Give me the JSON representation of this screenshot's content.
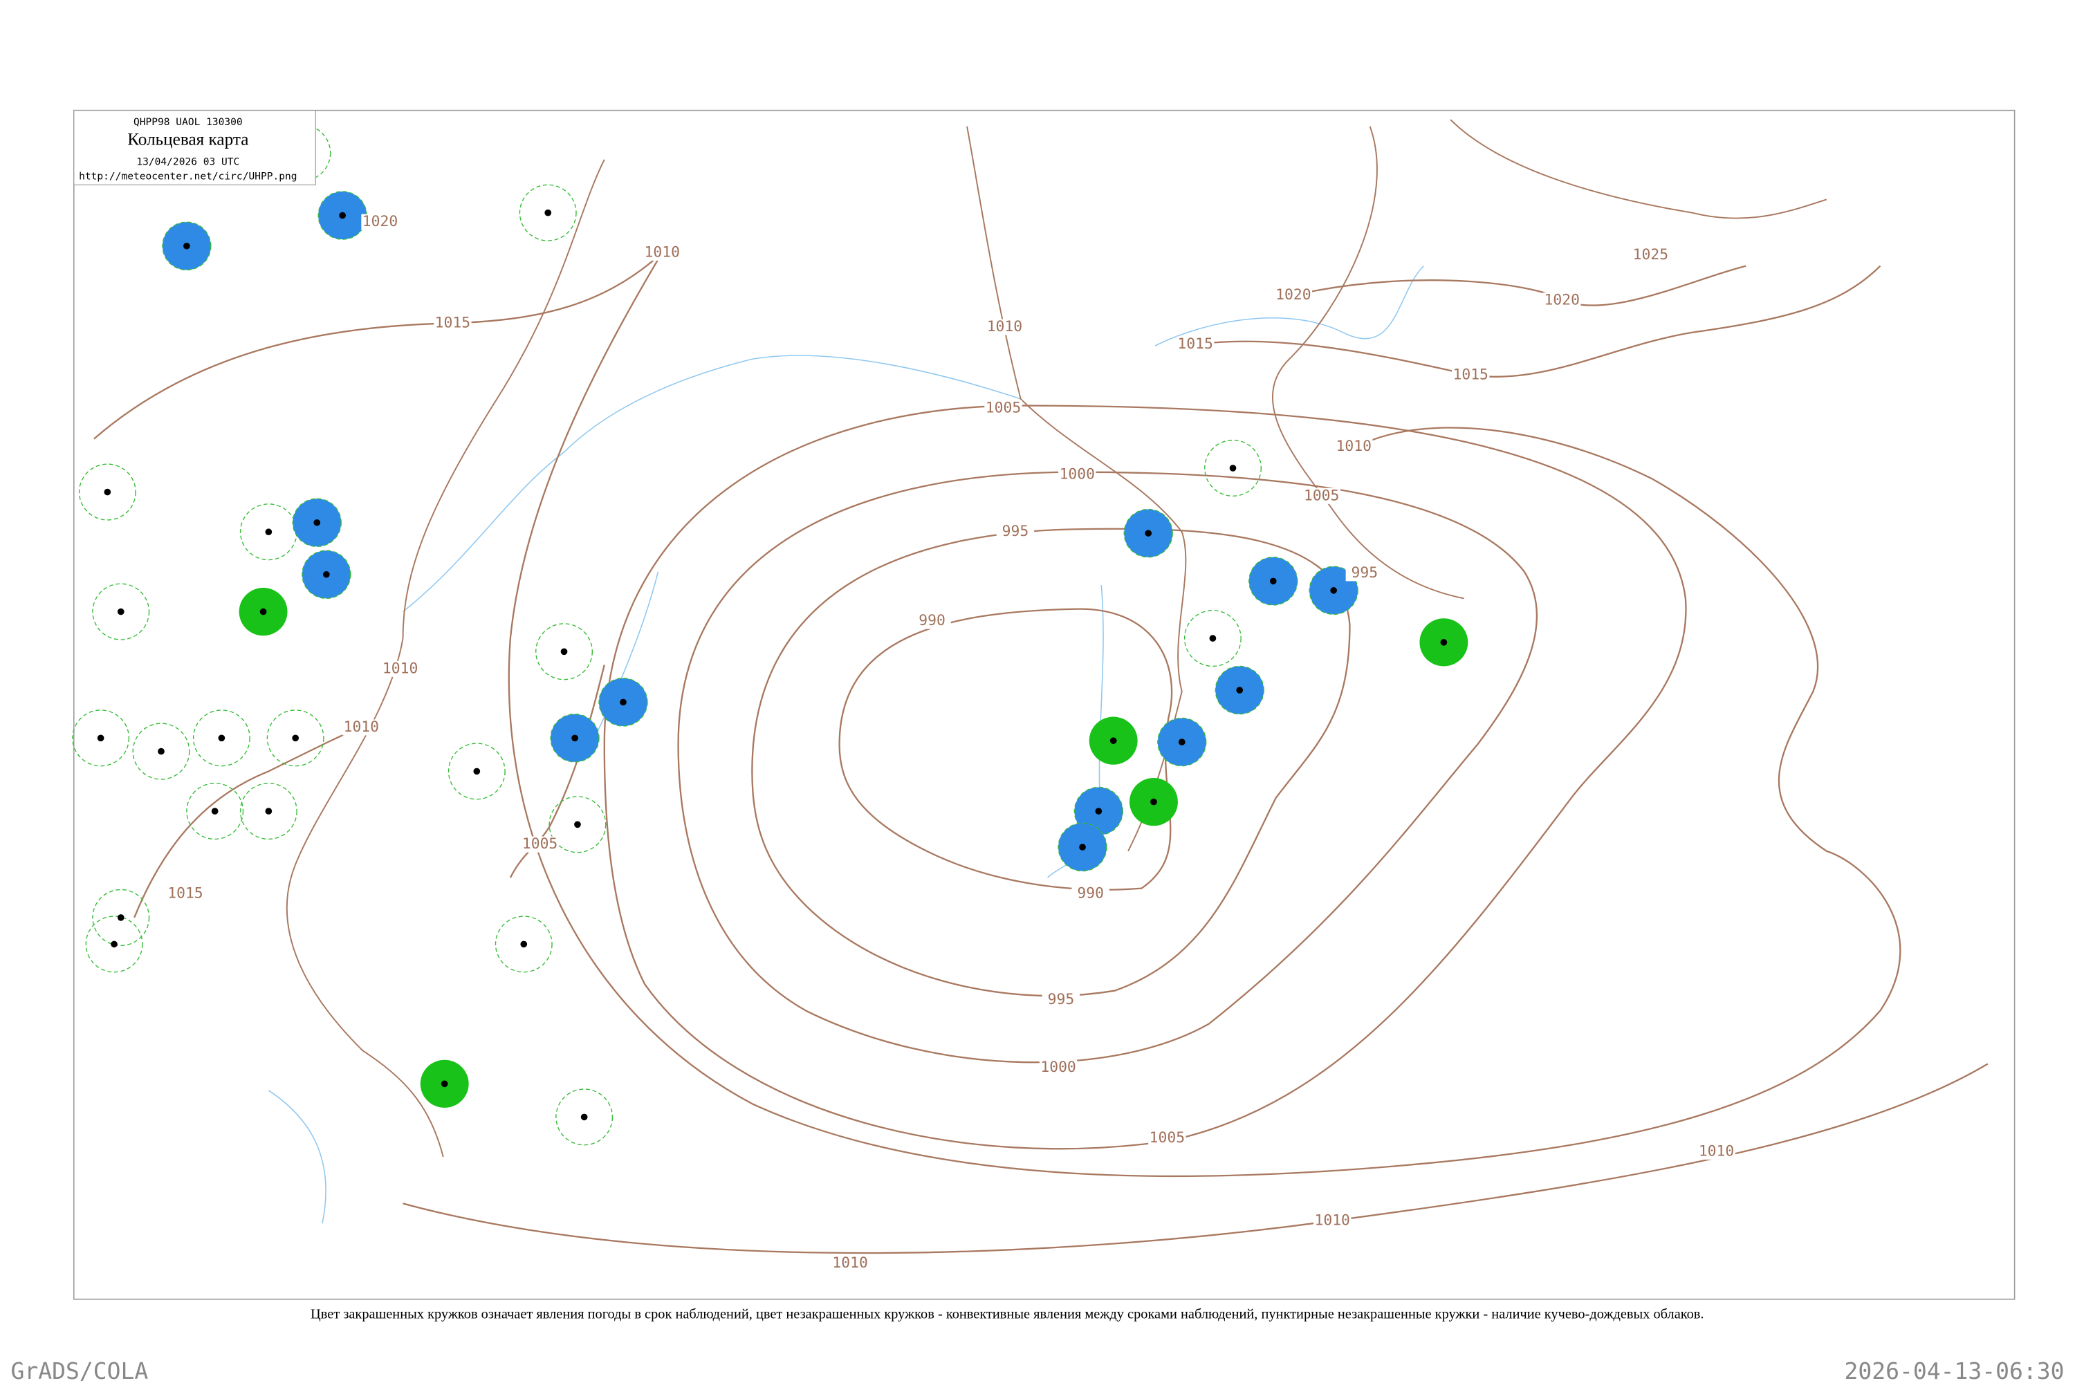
{
  "header": {
    "code": "QHPP98  UAOL  130300",
    "title": "Кольцевая карта",
    "time": "13/04/2026 03 UTC",
    "url": "http://meteocenter.net/circ/UHPP.png"
  },
  "isobar_labels": [
    "1020",
    "1010",
    "1015",
    "1010",
    "1005",
    "1000",
    "995",
    "990",
    "1020",
    "1015",
    "1025",
    "1020",
    "1015",
    "1010",
    "1005",
    "995",
    "1010",
    "1010",
    "1005",
    "1015",
    "990",
    "995",
    "1000",
    "1005",
    "1010",
    "1010",
    "1010"
  ],
  "caption": "Цвет закрашенных кружков означает явления погоды в срок наблюдений, цвет незакрашенных кружков - конвективные явления между сроками наблюдений, пунктирные незакрашенные кружки - наличие кучево-дождевых облаков.",
  "footer": {
    "left": "GrADS/COLA",
    "right": "2026-04-13-06:30"
  }
}
